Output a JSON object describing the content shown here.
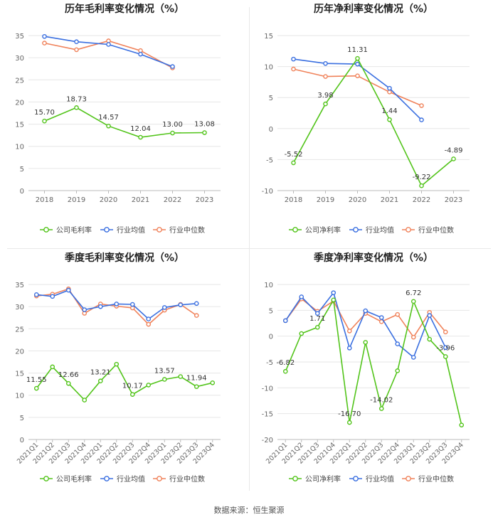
{
  "source_label": "数据来源：恒生聚源",
  "colors": {
    "company": "#52c41a",
    "industry_avg": "#3a6fe0",
    "industry_median": "#f0825a",
    "grid": "#e6e6e6",
    "axis_text": "#666666"
  },
  "chart_data": [
    {
      "type": "line",
      "title": "历年毛利率变化情况（%）",
      "categories": [
        "2018",
        "2019",
        "2020",
        "2021",
        "2022",
        "2023"
      ],
      "ylim": [
        0,
        35
      ],
      "yticks": [
        0,
        5,
        10,
        15,
        20,
        25,
        30,
        35
      ],
      "rotate_x": false,
      "series": [
        {
          "name": "公司毛利率",
          "key": "company",
          "values": [
            15.7,
            18.73,
            14.57,
            12.04,
            13.0,
            13.08
          ],
          "labels": [
            "15.70",
            "18.73",
            "14.57",
            "12.04",
            "13.00",
            "13.08"
          ]
        },
        {
          "name": "行业均值",
          "key": "industry_avg",
          "values": [
            34.8,
            33.6,
            33.0,
            30.8,
            28.0,
            null
          ],
          "labels": []
        },
        {
          "name": "行业中位数",
          "key": "industry_median",
          "values": [
            33.3,
            31.8,
            33.8,
            31.6,
            27.7,
            null
          ],
          "labels": []
        }
      ]
    },
    {
      "type": "line",
      "title": "历年净利率变化情况（%）",
      "categories": [
        "2018",
        "2019",
        "2020",
        "2021",
        "2022",
        "2023"
      ],
      "ylim": [
        -10,
        15
      ],
      "yticks": [
        -10,
        -5,
        0,
        5,
        10,
        15
      ],
      "rotate_x": false,
      "series": [
        {
          "name": "公司净利率",
          "key": "company",
          "values": [
            -5.52,
            3.98,
            11.31,
            1.44,
            -9.22,
            -4.89
          ],
          "labels": [
            "-5.52",
            "3.98",
            "11.31",
            "1.44",
            "-9.22",
            "-4.89"
          ]
        },
        {
          "name": "行业均值",
          "key": "industry_avg",
          "values": [
            11.2,
            10.5,
            10.4,
            6.5,
            1.4,
            null
          ],
          "labels": []
        },
        {
          "name": "行业中位数",
          "key": "industry_median",
          "values": [
            9.6,
            8.4,
            8.5,
            5.9,
            3.7,
            null
          ],
          "labels": []
        }
      ]
    },
    {
      "type": "line",
      "title": "季度毛利率变化情况（%）",
      "categories": [
        "2021Q1",
        "2021Q2",
        "2021Q3",
        "2021Q4",
        "2022Q1",
        "2022Q2",
        "2022Q3",
        "2022Q4",
        "2023Q1",
        "2023Q2",
        "2023Q3",
        "2023Q4"
      ],
      "ylim": [
        0,
        35
      ],
      "yticks": [
        0,
        5,
        10,
        15,
        20,
        25,
        30,
        35
      ],
      "rotate_x": true,
      "series": [
        {
          "name": "公司毛利率",
          "key": "company",
          "values": [
            11.55,
            16.4,
            12.66,
            8.9,
            13.21,
            17.0,
            10.17,
            12.3,
            13.57,
            14.2,
            11.94,
            12.8
          ],
          "labels": [
            "11.55",
            null,
            "12.66",
            null,
            "13.21",
            null,
            "10.17",
            null,
            "13.57",
            null,
            "11.94",
            null
          ]
        },
        {
          "name": "行业均值",
          "key": "industry_avg",
          "values": [
            32.7,
            32.3,
            33.7,
            29.3,
            30.0,
            30.6,
            30.5,
            27.2,
            29.8,
            30.4,
            30.7,
            null
          ],
          "labels": []
        },
        {
          "name": "行业中位数",
          "key": "industry_median",
          "values": [
            32.4,
            32.8,
            34.0,
            28.5,
            30.6,
            30.1,
            29.7,
            26.0,
            29.2,
            30.5,
            28.0,
            null
          ],
          "labels": []
        }
      ]
    },
    {
      "type": "line",
      "title": "季度净利率变化情况（%）",
      "categories": [
        "2021Q1",
        "2021Q2",
        "2021Q3",
        "2021Q4",
        "2022Q1",
        "2022Q2",
        "2022Q3",
        "2022Q4",
        "2023Q1",
        "2023Q2",
        "2023Q3",
        "2023Q4"
      ],
      "ylim": [
        -20,
        10
      ],
      "yticks": [
        -20,
        -15,
        -10,
        -5,
        0,
        5,
        10
      ],
      "rotate_x": true,
      "series": [
        {
          "name": "公司净利率",
          "key": "company",
          "values": [
            -6.82,
            0.5,
            1.71,
            7.0,
            -16.7,
            -1.2,
            -14.02,
            -6.7,
            6.72,
            -0.6,
            -3.96,
            -17.2
          ],
          "labels": [
            "-6.82",
            null,
            "1.71",
            null,
            "-16.70",
            null,
            "-14.02",
            null,
            "6.72",
            null,
            "-3.96",
            null
          ]
        },
        {
          "name": "行业均值",
          "key": "industry_avg",
          "values": [
            3.0,
            7.6,
            4.4,
            8.4,
            -2.3,
            4.9,
            3.6,
            -1.5,
            -4.1,
            4.0,
            -2.2,
            null
          ],
          "labels": []
        },
        {
          "name": "行业中位数",
          "key": "industry_median",
          "values": [
            3.0,
            7.2,
            4.8,
            6.8,
            1.0,
            4.4,
            2.8,
            4.2,
            -0.2,
            4.6,
            0.8,
            null
          ],
          "labels": []
        }
      ]
    }
  ]
}
